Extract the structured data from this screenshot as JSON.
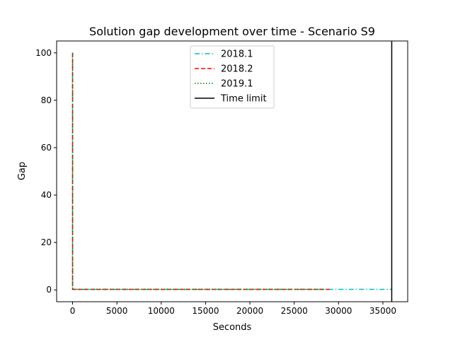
{
  "chart_data": {
    "type": "line",
    "title": "Solution gap development over time - Scenario S9",
    "xlabel": "Seconds",
    "ylabel": "Gap",
    "xlim": [
      -1800,
      37800
    ],
    "ylim": [
      -5,
      105
    ],
    "xticks": [
      0,
      5000,
      10000,
      15000,
      20000,
      25000,
      30000,
      35000
    ],
    "yticks": [
      0,
      20,
      40,
      60,
      80,
      100
    ],
    "grid": false,
    "legend_position": "top-center",
    "series": [
      {
        "name": "2018.1",
        "color": "#00bfbf",
        "style": "dashdot",
        "x": [
          0,
          0,
          100,
          36000
        ],
        "y": [
          100,
          0.2,
          0.2,
          0.2
        ]
      },
      {
        "name": "2018.2",
        "color": "#ff0000",
        "style": "dashed",
        "x": [
          0,
          0,
          100,
          29000
        ],
        "y": [
          100,
          0.2,
          0.2,
          0.2
        ]
      },
      {
        "name": "2019.1",
        "color": "#008000",
        "style": "dotted",
        "x": [
          0,
          0,
          100,
          28500
        ],
        "y": [
          100,
          0.2,
          0.2,
          0.2
        ]
      }
    ],
    "vlines": [
      {
        "name": "Time limit",
        "x": 36000,
        "color": "#000000",
        "style": "solid"
      }
    ]
  }
}
